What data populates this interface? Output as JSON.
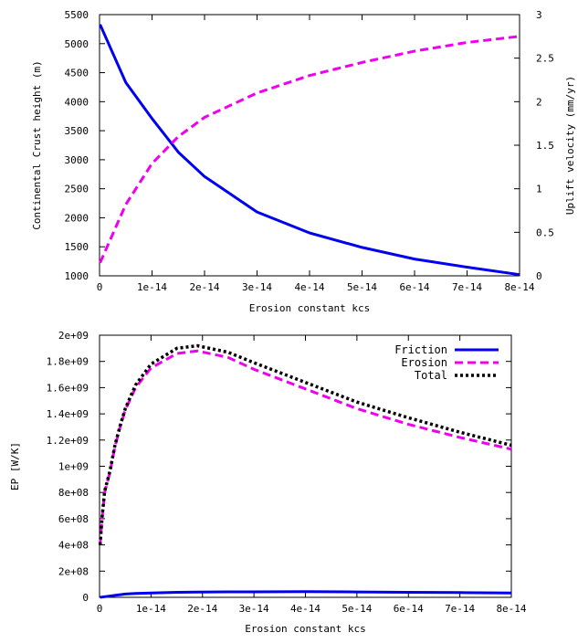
{
  "chart_data": [
    {
      "type": "line",
      "xlabel": "Erosion constant kcs",
      "ylabel": "Continental Crust height (m)",
      "y2label": "Uplift velocity (mm/yr)",
      "xlim": [
        0,
        8e-14
      ],
      "ylim": [
        1000,
        5500
      ],
      "y2lim": [
        0,
        3
      ],
      "xticks": [
        "0",
        "1e-14",
        "2e-14",
        "3e-14",
        "4e-14",
        "5e-14",
        "6e-14",
        "7e-14",
        "8e-14"
      ],
      "yticks": [
        "1000",
        "1500",
        "2000",
        "2500",
        "3000",
        "3500",
        "4000",
        "4500",
        "5000",
        "5500"
      ],
      "y2ticks": [
        "0",
        "0.5",
        "1",
        "1.5",
        "2",
        "2.5",
        "3"
      ],
      "x": [
        1e-16,
        5e-15,
        1e-14,
        1.5e-14,
        2e-14,
        3e-14,
        4e-14,
        5e-14,
        6e-14,
        7e-14,
        8e-14
      ],
      "series": [
        {
          "color": "#0000ee",
          "style": "solid",
          "axis": "y",
          "values": [
            5330,
            4330,
            3710,
            3130,
            2710,
            2100,
            1740,
            1490,
            1290,
            1150,
            1020
          ]
        },
        {
          "color": "#ee00ee",
          "style": "dashed",
          "axis": "y2",
          "values": [
            0.15,
            0.82,
            1.29,
            1.6,
            1.82,
            2.1,
            2.3,
            2.45,
            2.58,
            2.68,
            2.75
          ]
        }
      ]
    },
    {
      "type": "line",
      "xlabel": "Erosion constant kcs",
      "ylabel": "EP [W/K]",
      "xlim": [
        0,
        8e-14
      ],
      "ylim": [
        0,
        2000000000
      ],
      "xticks": [
        "0",
        "1e-14",
        "2e-14",
        "3e-14",
        "4e-14",
        "5e-14",
        "6e-14",
        "7e-14",
        "8e-14"
      ],
      "yticks": [
        "0",
        "2e+08",
        "4e+08",
        "6e+08",
        "8e+08",
        "1e+09",
        "1.2e+09",
        "1.4e+09",
        "1.6e+09",
        "1.8e+09",
        "2e+09"
      ],
      "x": [
        1e-16,
        5e-16,
        1e-15,
        2e-15,
        3e-15,
        4e-15,
        5e-15,
        7e-15,
        1e-14,
        1.5e-14,
        1.9e-14,
        2.5e-14,
        3e-14,
        4e-14,
        5e-14,
        6e-14,
        7e-14,
        8e-14
      ],
      "series": [
        {
          "name": "Friction",
          "color": "#0000ee",
          "style": "solid",
          "values": [
            0,
            2000000,
            5000000,
            10000000,
            15000000,
            20000000,
            25000000,
            30000000,
            33000000,
            38000000,
            40000000,
            42000000,
            42000000,
            43000000,
            41000000,
            38000000,
            36000000,
            33000000
          ]
        },
        {
          "name": "Erosion",
          "color": "#ee00ee",
          "style": "dashed",
          "values": [
            400000000,
            600000000,
            800000000,
            950000000,
            1150000000,
            1300000000,
            1430000000,
            1600000000,
            1750000000,
            1860000000,
            1880000000,
            1830000000,
            1740000000,
            1590000000,
            1440000000,
            1320000000,
            1220000000,
            1130000000
          ]
        },
        {
          "name": "Total",
          "color": "#000000",
          "style": "dotted",
          "values": [
            400000000,
            610000000,
            810000000,
            960000000,
            1160000000,
            1310000000,
            1440000000,
            1620000000,
            1780000000,
            1900000000,
            1920000000,
            1870000000,
            1790000000,
            1640000000,
            1490000000,
            1370000000,
            1260000000,
            1160000000
          ]
        }
      ]
    }
  ]
}
